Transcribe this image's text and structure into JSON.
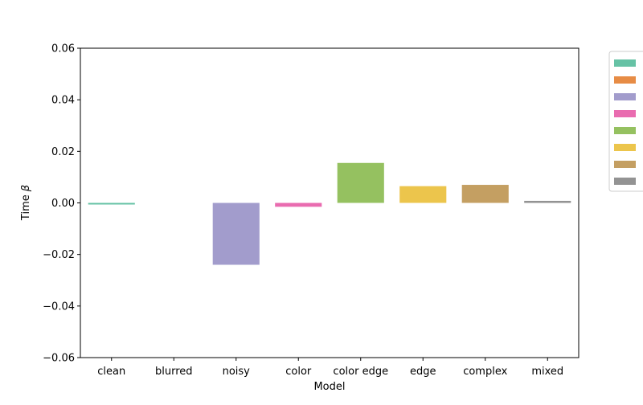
{
  "chart_data": {
    "type": "bar",
    "title": "",
    "xlabel": "Model",
    "ylabel": "Time",
    "ylabel_symbol": "β",
    "categories": [
      "clean",
      "blurred",
      "noisy",
      "color",
      "color edge",
      "edge",
      "complex",
      "mixed"
    ],
    "values": [
      -0.0005,
      0.0,
      -0.024,
      -0.0015,
      0.0155,
      0.0065,
      0.007,
      0.0008
    ],
    "colors": [
      "#66c2a5",
      "#e78c45",
      "#a29ccc",
      "#e96cb0",
      "#95c160",
      "#ecc54c",
      "#c49f62",
      "#939393"
    ],
    "ylim": [
      -0.06,
      0.06
    ],
    "yticks": [
      "−0.06",
      "−0.04",
      "−0.02",
      "0.00",
      "0.02",
      "0.04",
      "0.06"
    ],
    "ytick_values": [
      -0.06,
      -0.04,
      -0.02,
      0.0,
      0.02,
      0.04,
      0.06
    ],
    "grid": false,
    "legend": {
      "placement": "outside-right",
      "entries": [
        "",
        "",
        "",
        "",
        "",
        "",
        "",
        ""
      ]
    }
  }
}
